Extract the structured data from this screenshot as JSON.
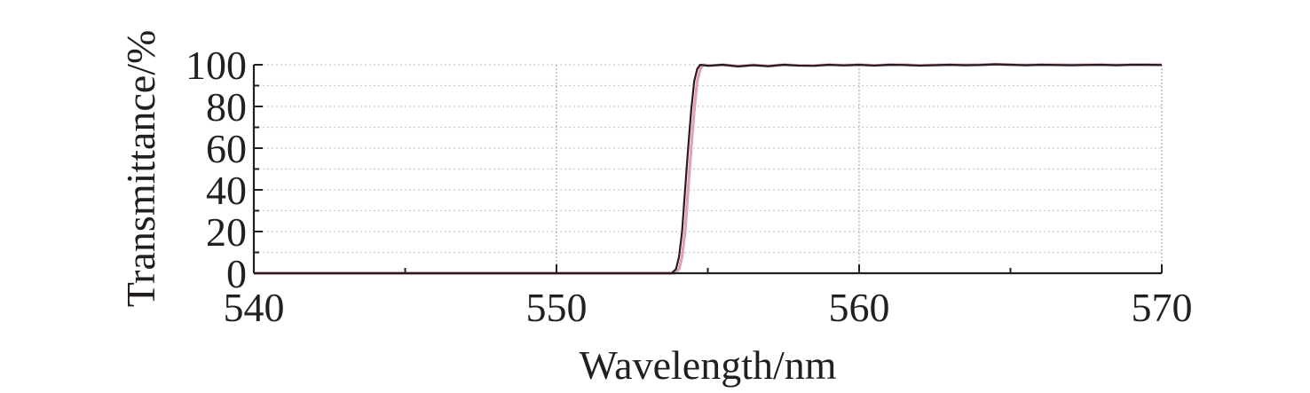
{
  "chart_data": {
    "type": "line",
    "title": "",
    "xlabel": "Wavelength/nm",
    "ylabel": "Transmittance/%",
    "xlim": [
      540,
      570
    ],
    "ylim": [
      0,
      100
    ],
    "x_ticks": [
      540,
      550,
      560,
      570
    ],
    "y_ticks": [
      0,
      20,
      40,
      60,
      80,
      100
    ],
    "x_tick_labels": [
      "540",
      "550",
      "560",
      "570"
    ],
    "y_tick_labels": [
      "0",
      "20",
      "40",
      "60",
      "80",
      "100"
    ],
    "grid": true,
    "legend": "none",
    "series": [
      {
        "color": "#231f20",
        "x": [
          540,
          545,
          550,
          553,
          553.8,
          553.95,
          554.05,
          554.15,
          554.25,
          554.35,
          554.45,
          554.55,
          554.65,
          554.75,
          555,
          555.5,
          556,
          556.5,
          557,
          557.5,
          558,
          558.5,
          559,
          559.5,
          560,
          560.5,
          561,
          561.5,
          562,
          562.5,
          563,
          563.5,
          564,
          564.5,
          565,
          565.5,
          566,
          566.5,
          567,
          567.5,
          568,
          568.5,
          569,
          569.5,
          570
        ],
        "y": [
          0,
          0,
          0,
          0,
          0,
          2,
          8,
          20,
          40,
          60,
          78,
          92,
          98,
          100,
          99.5,
          100,
          99.2,
          99.8,
          99.3,
          100,
          99.6,
          99.5,
          100,
          99.7,
          100,
          99.6,
          100,
          99.9,
          99.6,
          99.8,
          100,
          99.8,
          99.9,
          100.2,
          100,
          99.8,
          100,
          99.9,
          99.8,
          99.9,
          100,
          99.8,
          100,
          100,
          99.9
        ]
      },
      {
        "color": "#e3a0b3",
        "x": [
          540,
          545,
          550,
          553,
          553.9,
          554.05,
          554.15,
          554.25,
          554.35,
          554.45,
          554.55,
          554.65,
          554.75,
          554.85,
          555.1,
          555.5,
          556,
          556.5,
          557,
          557.5,
          558,
          558.5,
          559,
          559.5,
          560,
          560.5,
          561,
          561.5,
          562,
          562.5,
          563,
          563.5,
          564,
          564.5,
          565,
          565.5,
          566,
          566.5,
          567,
          567.5,
          568,
          568.5,
          569,
          569.5,
          570
        ],
        "y": [
          0,
          0,
          0,
          0,
          0,
          2,
          8,
          20,
          40,
          60,
          78,
          92,
          98,
          100,
          99.6,
          100,
          99.3,
          99.9,
          99.4,
          100,
          99.7,
          99.6,
          100,
          99.8,
          100,
          99.7,
          100,
          100,
          99.7,
          99.9,
          100,
          99.9,
          100,
          100.2,
          100,
          99.9,
          100,
          100,
          99.9,
          100,
          100,
          99.9,
          100,
          100,
          100
        ]
      }
    ]
  }
}
